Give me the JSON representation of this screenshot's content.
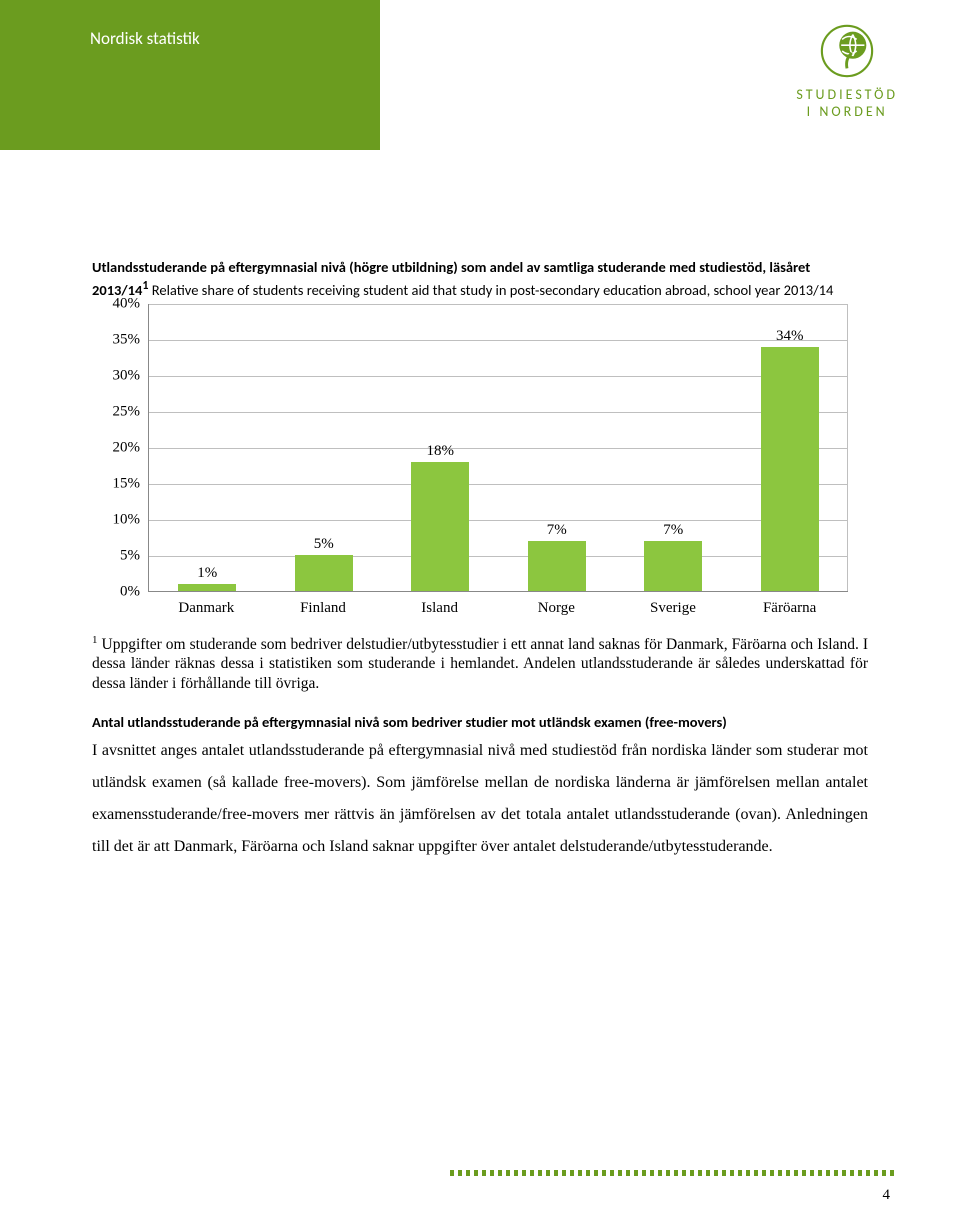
{
  "header": {
    "title": "Nordisk statistik"
  },
  "logo": {
    "line1": "STUDIESTÖD",
    "line2": "I NORDEN"
  },
  "chart": {
    "type": "bar",
    "title_bold": "Utlandsstuderande på eftergymnasial nivå (högre utbildning) som andel av samtliga studerande med studiestöd, läsåret 2013/14",
    "title_sup": "1",
    "title_rest": " Relative share of students receiving student aid that study in post-secondary education abroad, school year 2013/14",
    "ylim": [
      0,
      40
    ],
    "ytick_step": 5,
    "y_ticks": [
      "0%",
      "5%",
      "10%",
      "15%",
      "20%",
      "25%",
      "30%",
      "35%",
      "40%"
    ],
    "categories": [
      "Danmark",
      "Finland",
      "Island",
      "Norge",
      "Sverige",
      "Färöarna"
    ],
    "values": [
      1,
      5,
      18,
      7,
      7,
      34
    ],
    "value_labels": [
      "1%",
      "5%",
      "18%",
      "7%",
      "7%",
      "34%"
    ],
    "bar_color": "#8cc63f",
    "grid_color": "#bfbfbf",
    "axis_color": "#888888",
    "background_color": "#ffffff",
    "font_family": "Times New Roman",
    "label_fontsize": 15
  },
  "footnote": {
    "sup": "1",
    "text": " Uppgifter om studerande som bedriver delstudier/utbytesstudier i ett annat land saknas för Danmark, Färöarna och Island. I dessa länder räknas dessa i statistiken som studerande i hemlandet. Andelen utlandsstuderande är således underskattad för dessa länder i förhållande till övriga."
  },
  "section": {
    "heading": "Antal utlandsstuderande på eftergymnasial nivå som bedriver studier mot utländsk examen (free-movers)",
    "body": "I avsnittet anges antalet utlandsstuderande på eftergymnasial nivå med studiestöd från nordiska länder som studerar mot utländsk examen (så kallade free-movers). Som jämförelse mellan de nordiska länderna är jämförelsen mellan antalet examensstuderande/free-movers mer rättvis än jämförelsen av det totala antalet utlandsstuderande (ovan). Anledningen till det är att Danmark, Färöarna och Island saknar uppgifter över antalet delstuderande/utbytesstuderande."
  },
  "page_number": "4"
}
